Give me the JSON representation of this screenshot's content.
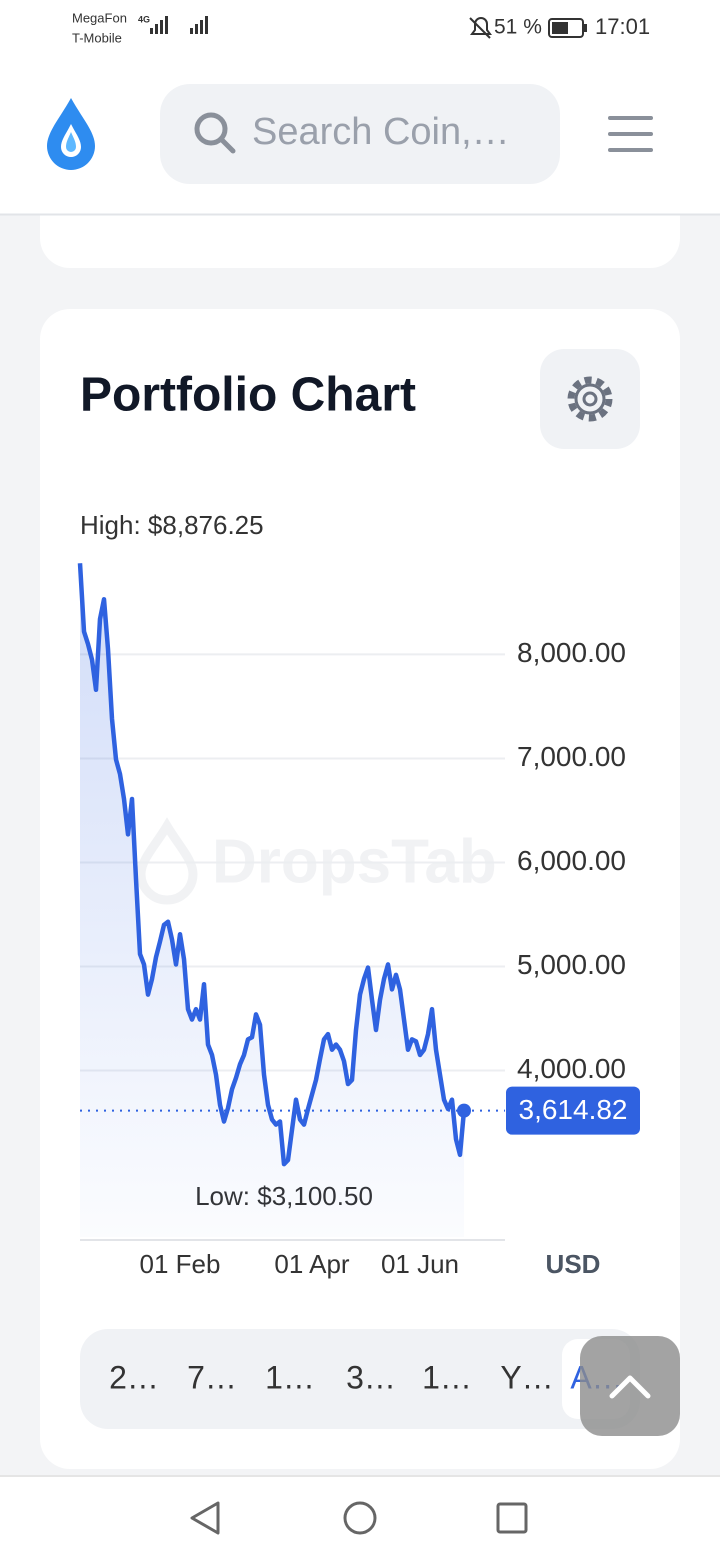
{
  "status_bar": {
    "carrier_1": "MegaFon",
    "carrier_2": "T-Mobile",
    "network": "4G",
    "battery": "51 %",
    "time": "17:01"
  },
  "header": {
    "search_placeholder": "Search Coin,…"
  },
  "card": {
    "title": "Portfolio Chart",
    "currency": "USD",
    "ranges": [
      "2…",
      "7…",
      "1…",
      "3…",
      "1…",
      "Y…",
      "A…"
    ]
  },
  "chart_data": {
    "type": "line",
    "watermark": "DropsTab",
    "color": "#2f62e0",
    "categories": [
      null,
      null,
      null,
      null,
      null,
      null,
      null,
      null,
      null,
      null,
      null,
      null,
      null,
      null,
      null,
      null,
      null,
      null,
      null,
      null,
      null,
      null,
      null,
      null,
      null,
      "01 Feb",
      null,
      null,
      null,
      null,
      null,
      null,
      null,
      null,
      null,
      null,
      null,
      null,
      null,
      null,
      null,
      null,
      null,
      null,
      null,
      null,
      null,
      null,
      null,
      null,
      null,
      null,
      null,
      null,
      null,
      null,
      null,
      null,
      "01 Apr",
      null,
      null,
      null,
      null,
      null,
      null,
      null,
      null,
      null,
      null,
      null,
      null,
      null,
      null,
      null,
      null,
      null,
      null,
      null,
      null,
      null,
      null,
      null,
      null,
      null,
      null,
      "01 Jun",
      null,
      null,
      null,
      null,
      null,
      null,
      null,
      null,
      null,
      null,
      null
    ],
    "values": [
      8876.25,
      8220,
      8100,
      7950,
      7660,
      8340,
      8530,
      8050,
      7380,
      6990,
      6850,
      6610,
      6270,
      6610,
      5840,
      5120,
      5020,
      4730,
      4880,
      5090,
      5240,
      5400,
      5430,
      5260,
      5020,
      5310,
      5070,
      4590,
      4490,
      4590,
      4490,
      4830,
      4250,
      4150,
      3960,
      3670,
      3510,
      3640,
      3820,
      3930,
      4060,
      4150,
      4300,
      4320,
      4540,
      4440,
      3960,
      3670,
      3530,
      3480,
      3510,
      3100.5,
      3140,
      3430,
      3720,
      3530,
      3480,
      3630,
      3770,
      3910,
      4110,
      4300,
      4350,
      4200,
      4250,
      4200,
      4090,
      3870,
      3910,
      4390,
      4730,
      4880,
      4990,
      4680,
      4390,
      4680,
      4880,
      5020,
      4780,
      4920,
      4780,
      4490,
      4200,
      4300,
      4280,
      4150,
      4200,
      4350,
      4590,
      4200,
      3960,
      3720,
      3630,
      3720,
      3340,
      3190,
      3614.82
    ],
    "ylim": [
      2400,
      9100
    ],
    "yticks": [
      {
        "value": 4000,
        "label": "4,000.00"
      },
      {
        "value": 5000,
        "label": "5,000.00"
      },
      {
        "value": 6000,
        "label": "6,000.00"
      },
      {
        "value": 7000,
        "label": "7,000.00"
      },
      {
        "value": 8000,
        "label": "8,000.00"
      }
    ],
    "grid": true,
    "annotations": [
      {
        "value": 8876.25,
        "label": "High: $8,876.25"
      },
      {
        "value": 3100.5,
        "label": "Low: $3,100.50"
      },
      {
        "value": 3614.82,
        "label": "3,614.82"
      }
    ]
  }
}
